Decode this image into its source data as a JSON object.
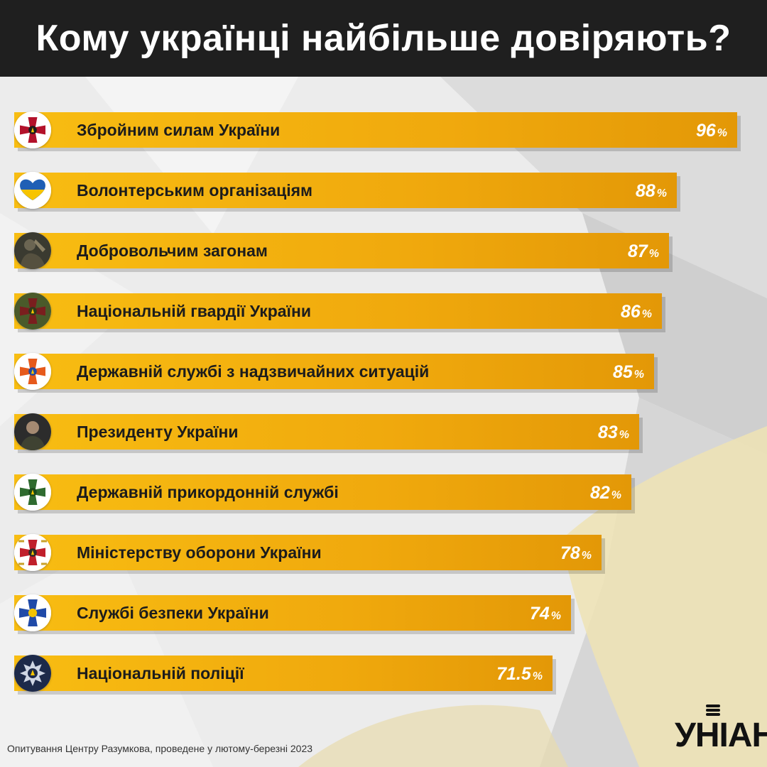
{
  "header": {
    "title": "Кому українці найбільше довіряють?"
  },
  "chart_data": {
    "type": "bar",
    "orientation": "horizontal",
    "title": "Кому українці найбільше довіряють?",
    "value_suffix": "%",
    "categories": [
      "Збройним силам України",
      "Волонтерським організаціям",
      "Добровольчим загонам",
      "Національній гвардії України",
      "Державній службі з надзвичайних ситуацій",
      "Президенту України",
      "Державній прикордонній службі",
      "Міністерству оборони України",
      "Службі безпеки України",
      "Національній поліції"
    ],
    "values": [
      96,
      88,
      87,
      86,
      85,
      83,
      82,
      78,
      74,
      71.5
    ],
    "value_labels": [
      "96",
      "88",
      "87",
      "86",
      "85",
      "83",
      "82",
      "78",
      "74",
      "71.5"
    ],
    "icons": [
      "armed-forces-emblem-icon",
      "heart-flag-icon",
      "soldier-photo-icon",
      "national-guard-emblem-icon",
      "emergency-service-emblem-icon",
      "president-photo-icon",
      "border-guard-emblem-icon",
      "defense-ministry-emblem-icon",
      "security-service-emblem-icon",
      "police-emblem-icon"
    ],
    "bar_color": "#f5b50f",
    "xlim": [
      0,
      100
    ],
    "grid": false,
    "legend": "none"
  },
  "footer": {
    "source": "Опитування Центру Разумкова, проведене у лютому-березні 2023"
  },
  "logo": {
    "text": "УНІАН",
    "name": "unian-logo-icon"
  }
}
